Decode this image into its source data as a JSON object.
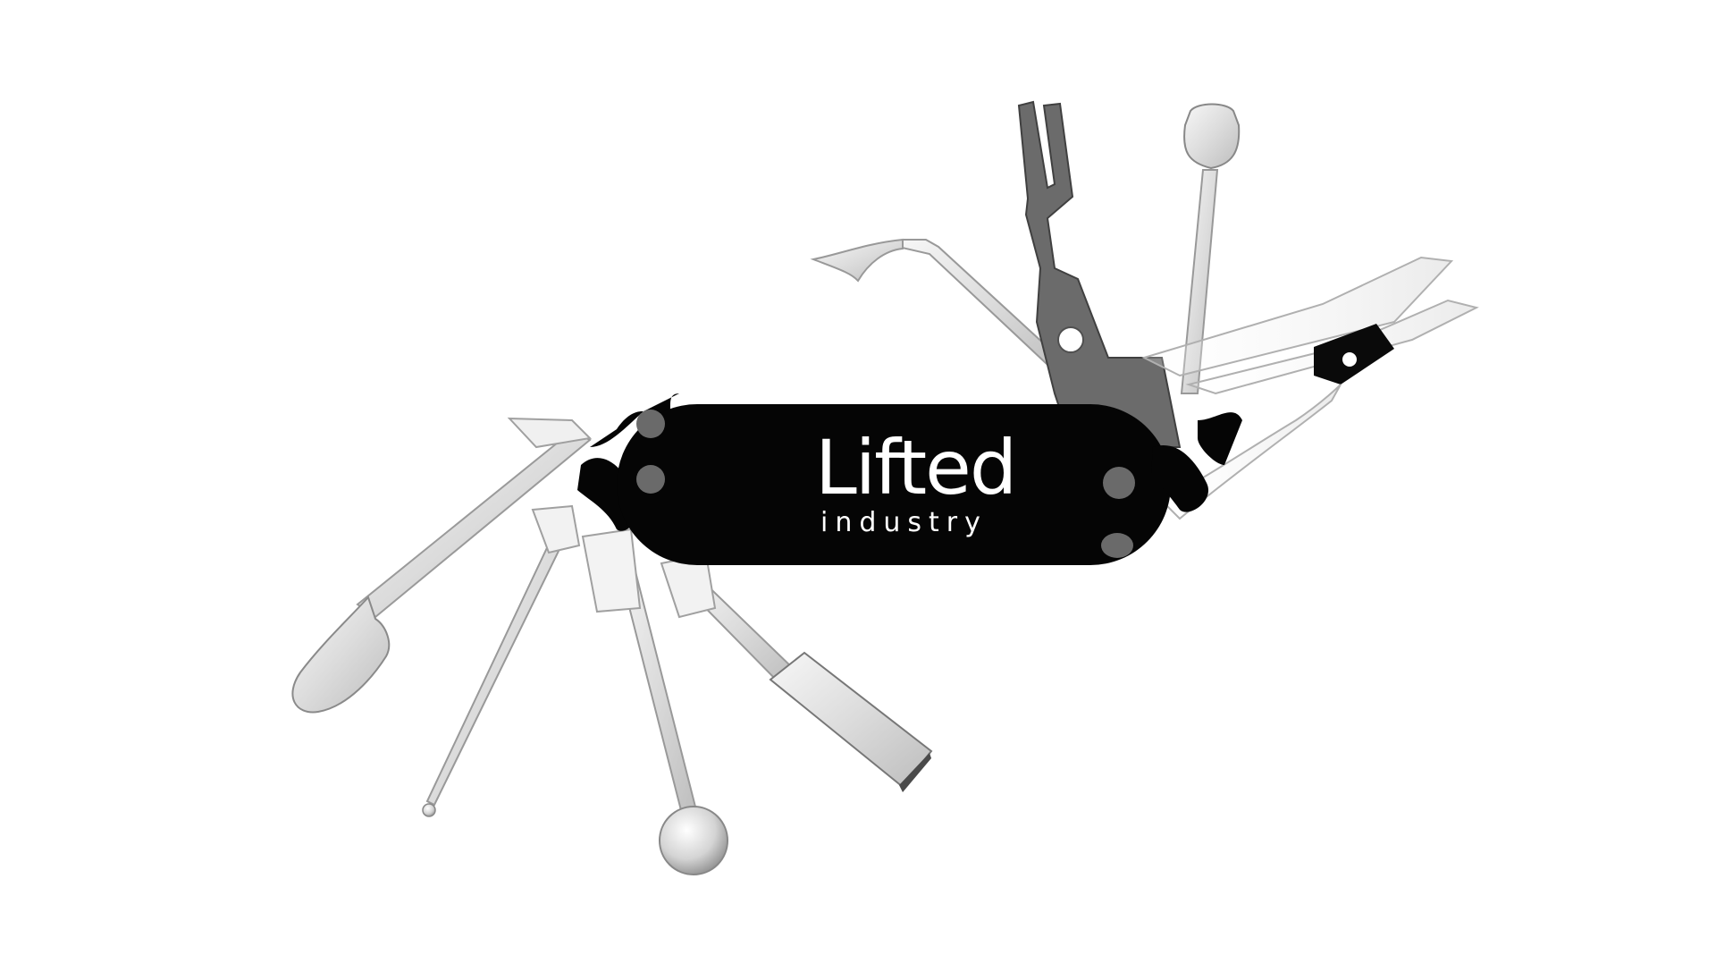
{
  "brand": {
    "name": "Lifted",
    "tagline": "industry"
  },
  "colors": {
    "background": "#ffffff",
    "handle": "#050505",
    "steel_light": "#e8e8e8",
    "steel_mid": "#cfcfcf",
    "steel_edge": "#9a9a9a",
    "dark_blade": "#6a6a6a"
  },
  "tools": [
    "spoon-tool",
    "dabber-tool",
    "ball-dabber-tool",
    "scoop-tool",
    "flat-spatula-tool",
    "hook-pick-tool",
    "fork-tool",
    "flat-tip-tool",
    "scissors-tool"
  ]
}
